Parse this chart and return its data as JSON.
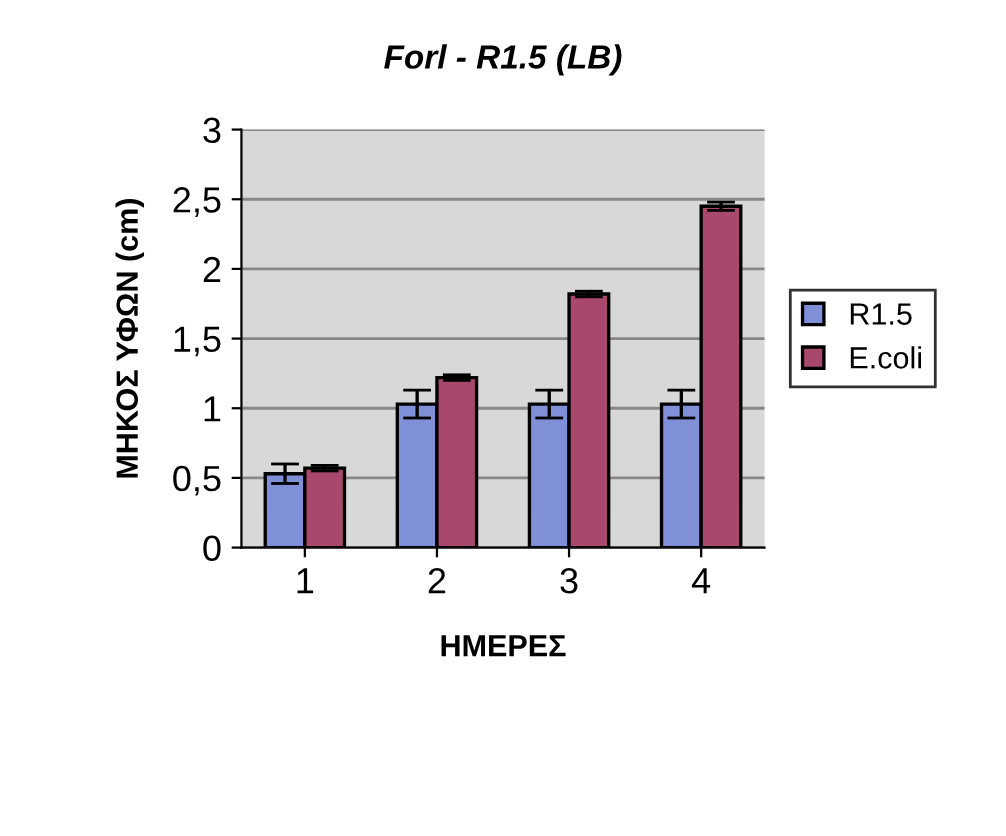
{
  "chart_data": {
    "type": "bar",
    "title": "Forl - R1.5 (LB)",
    "xlabel": "ΗΜΕΡΕΣ",
    "ylabel": "ΜΗΚΟΣ ΥΦΩΝ (cm)",
    "categories": [
      "1",
      "2",
      "3",
      "4"
    ],
    "series": [
      {
        "name": "R1.5",
        "color": "#7f8fd8",
        "values": [
          0.53,
          1.03,
          1.03,
          1.03
        ],
        "errors": [
          0.07,
          0.1,
          0.1,
          0.1
        ]
      },
      {
        "name": "E.coli",
        "color": "#a8486c",
        "values": [
          0.57,
          1.22,
          1.82,
          2.45
        ],
        "errors": [
          0.02,
          0.02,
          0.02,
          0.03
        ]
      }
    ],
    "ylim": [
      0,
      3
    ],
    "yticks": [
      0,
      {
        "value": 0.5,
        "label": "0,5"
      },
      1,
      {
        "value": 1.5,
        "label": "1,5"
      },
      2,
      {
        "value": 2.5,
        "label": "2,5"
      },
      3
    ],
    "grid": "y",
    "legend": "right"
  }
}
